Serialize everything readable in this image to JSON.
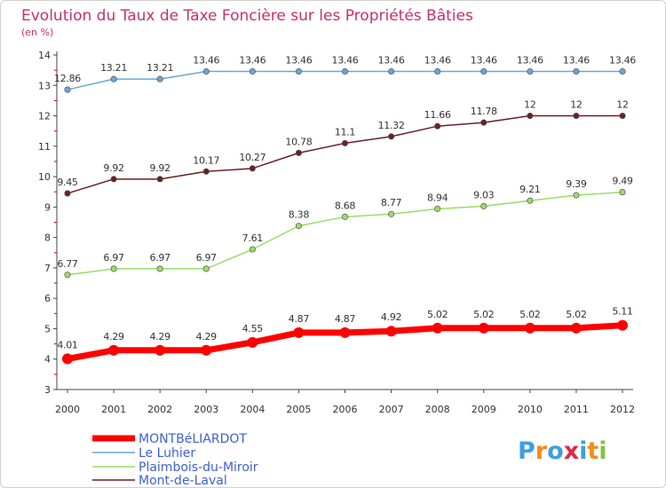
{
  "chart_data": {
    "type": "line",
    "title": "Evolution du Taux de Taxe Foncière sur les Propriétés Bâties",
    "subtitle": "(en %)",
    "xlabel": "",
    "ylabel": "",
    "ylim": [
      3,
      14
    ],
    "yticks": [
      3,
      4,
      5,
      6,
      7,
      8,
      9,
      10,
      11,
      12,
      13,
      14
    ],
    "categories": [
      "2000",
      "2001",
      "2002",
      "2003",
      "2004",
      "2005",
      "2006",
      "2007",
      "2008",
      "2009",
      "2010",
      "2011",
      "2012"
    ],
    "grid": false,
    "legend_position": "bottom-left",
    "series": [
      {
        "name": "MONTBéLIARDOT",
        "color": "#ff0000",
        "values": [
          4.01,
          4.29,
          4.29,
          4.29,
          4.55,
          4.87,
          4.87,
          4.92,
          5.02,
          5.02,
          5.02,
          5.02,
          5.11
        ],
        "labels": [
          "4.01",
          "4.29",
          "4.29",
          "4.29",
          "4.55",
          "4.87",
          "4.87",
          "4.92",
          "5.02",
          "5.02",
          "5.02",
          "5.02",
          "5.11"
        ]
      },
      {
        "name": "Le Luhier",
        "color": "#6aa6d6",
        "values": [
          12.86,
          13.21,
          13.21,
          13.46,
          13.46,
          13.46,
          13.46,
          13.46,
          13.46,
          13.46,
          13.46,
          13.46,
          13.46
        ],
        "labels": [
          "12.86",
          "13.21",
          "13.21",
          "13.46",
          "13.46",
          "13.46",
          "13.46",
          "13.46",
          "13.46",
          "13.46",
          "13.46",
          "13.46",
          "13.46"
        ]
      },
      {
        "name": "Plaimbois-du-Miroir",
        "color": "#99dd66",
        "values": [
          6.77,
          6.97,
          6.97,
          6.97,
          7.61,
          8.38,
          8.68,
          8.77,
          8.94,
          9.03,
          9.21,
          9.39,
          9.49
        ],
        "labels": [
          "6.77",
          "6.97",
          "6.97",
          "6.97",
          "7.61",
          "8.38",
          "8.68",
          "8.77",
          "8.94",
          "9.03",
          "9.21",
          "9.39",
          "9.49"
        ]
      },
      {
        "name": "Mont-de-Laval",
        "color": "#6b1f24",
        "values": [
          9.45,
          9.92,
          9.92,
          10.17,
          10.27,
          10.78,
          11.1,
          11.32,
          11.66,
          11.78,
          12,
          12,
          12
        ],
        "labels": [
          "9.45",
          "9.92",
          "9.92",
          "10.17",
          "10.27",
          "10.78",
          "11.1",
          "11.32",
          "11.66",
          "11.78",
          "12",
          "12",
          "12"
        ]
      }
    ]
  },
  "legend_colors": {
    "MONTBéLIARDOT": "#3f5fd4",
    "Le Luhier": "#3f5fd4",
    "Plaimbois-du-Miroir": "#3f5fd4",
    "Mont-de-Laval": "#3f5fd4"
  },
  "logo": {
    "text": "Proxiti",
    "letter_colors": [
      "#3aa0e0",
      "#f08c1e",
      "#3aa0e0",
      "#e0284a",
      "#3aa0e0",
      "#f08c1e",
      "#7fc241"
    ]
  }
}
